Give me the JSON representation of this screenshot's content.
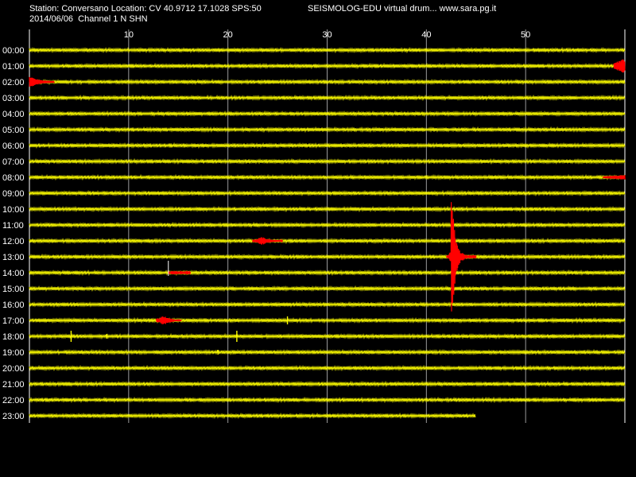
{
  "header": {
    "station_line": "Station: Conversano Location: CV 40.9712 17.1028 SPS:50",
    "date_line": "2014/06/06  Channel 1 N SHN",
    "brand": "SEISMOLOG-EDU virtual drum... www.sara.pg.it"
  },
  "colors": {
    "background": "#000000",
    "trace": "#ffff00",
    "event": "#ff0000",
    "grid": "#ffffff"
  },
  "chart_data": {
    "type": "line",
    "x_ticks": [
      10,
      20,
      30,
      40,
      50
    ],
    "xlim": [
      0,
      60
    ],
    "rows": [
      "00:00",
      "01:00",
      "02:00",
      "03:00",
      "04:00",
      "05:00",
      "06:00",
      "07:00",
      "08:00",
      "09:00",
      "10:00",
      "11:00",
      "12:00",
      "13:00",
      "14:00",
      "15:00",
      "16:00",
      "17:00",
      "18:00",
      "19:00",
      "20:00",
      "21:00",
      "22:00",
      "23:00"
    ],
    "last_row_end_minute": 45,
    "events": [
      {
        "row": "01:00",
        "start": 58.9,
        "end": 60,
        "amp": 10
      },
      {
        "row": "02:00",
        "start": 0,
        "end": 2.5,
        "amp": 7
      },
      {
        "row": "08:00",
        "start": 57.8,
        "end": 60,
        "amp": 3
      },
      {
        "row": "12:00",
        "start": 22.5,
        "end": 25.5,
        "amp": 5
      },
      {
        "row": "13:00",
        "start": 42.0,
        "end": 45.0,
        "amp": 95,
        "peak": 42.5
      },
      {
        "row": "14:00",
        "start": 14.0,
        "end": 16.2,
        "amp": 15,
        "spike": true
      },
      {
        "row": "17:00",
        "start": 12.8,
        "end": 15.3,
        "amp": 6
      }
    ],
    "minor_spikes": [
      {
        "row": "17:00",
        "at": 26.0,
        "amp": 5
      },
      {
        "row": "18:00",
        "at": 4.2,
        "amp": 7
      },
      {
        "row": "18:00",
        "at": 7.8,
        "amp": 3
      },
      {
        "row": "18:00",
        "at": 20.9,
        "amp": 7
      },
      {
        "row": "19:00",
        "at": 19.0,
        "amp": 3
      }
    ]
  }
}
